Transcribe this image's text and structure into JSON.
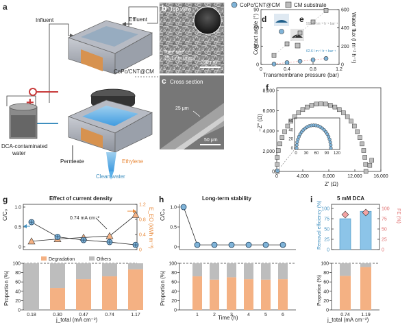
{
  "panels": {
    "a": {
      "label": "a",
      "influent": "Influent",
      "effluent": "Effluent",
      "membrane": "CoPc/CNT@CM",
      "source": "DCA-contaminated water",
      "source_line1": "DCA-contaminated",
      "source_line2": "water",
      "permeate": "Permeate",
      "ethylene": "Ethylene",
      "clean_water": "Clean water",
      "plus": "+",
      "minus": "−"
    },
    "b": {
      "label": "b",
      "title": "Top view",
      "pore_line1": "Pore size",
      "pore_line2": "15.1 nm (avg.)",
      "scale": "200 nm"
    },
    "c": {
      "label": "c",
      "title": "Cross section",
      "thickness": "25 μm",
      "scale": "50 μm"
    },
    "legend": {
      "s1": "CoPc/CNT@CM",
      "s2": "CM substrate"
    },
    "d": {
      "label": "d"
    },
    "e": {
      "label": "e",
      "note1": "592.0 l m⁻² h⁻¹ bar⁻¹",
      "note2": "62.6 l m⁻² h⁻¹ bar⁻¹"
    },
    "f": {
      "label": "f"
    },
    "g": {
      "label": "g",
      "title": "Effect of current density",
      "annotation": "0.74 mA cm⁻²"
    },
    "h": {
      "label": "h",
      "title": "Long-term stability"
    },
    "i": {
      "label": "i",
      "title": "5 mM DCA"
    }
  },
  "colors": {
    "blue": "#7fb3d8",
    "gray": "#bdbdbd",
    "orange": "#f4b183",
    "orange_dark": "#e8893a",
    "pink": "#f4a3a3",
    "dark_blue": "#1f5f8b"
  },
  "chart_data": [
    {
      "id": "d_e",
      "type": "scatter",
      "xlabel": "Transmembrane pressure (bar)",
      "ylabel": "Contact angle (°)",
      "y2label": "Water flux (l m⁻² h⁻¹)",
      "xticks": [
        "0",
        "0.4",
        "0.8",
        "1.2"
      ],
      "xlim": [
        0,
        1.2
      ],
      "yticks": [
        "0",
        "30",
        "60",
        "90"
      ],
      "ylim": [
        0,
        90
      ],
      "y2ticks": [
        "0",
        "200",
        "400",
        "600"
      ],
      "y2lim": [
        0,
        600
      ],
      "series": [
        {
          "name": "CoPc/CNT@CM",
          "x": [
            0.2,
            0.4,
            0.6,
            0.8,
            1.0
          ],
          "y": [
            5,
            20,
            35,
            50,
            65
          ]
        },
        {
          "name": "CM substrate",
          "x": [
            0.2,
            0.4,
            0.6,
            0.8,
            1.0
          ],
          "y": [
            100,
            225,
            345,
            465,
            590
          ]
        }
      ]
    },
    {
      "id": "f",
      "type": "scatter",
      "xlabel": "Z′ (Ω)",
      "ylabel": "−Z″ (Ω)",
      "xticks": [
        "0",
        "4,000",
        "8,000",
        "12,000",
        "16,000"
      ],
      "xlim": [
        0,
        16000
      ],
      "yticks": [
        "0",
        "2,000",
        "4,000",
        "6,000",
        "8,000"
      ],
      "ylim": [
        0,
        8000
      ],
      "inset_xticks": [
        "0",
        "30",
        "60",
        "90",
        "120"
      ],
      "inset_yticks": [
        "0",
        "20",
        "40",
        "60"
      ],
      "series": [
        {
          "name": "CM substrate",
          "center": 6800,
          "radius": 6900
        },
        {
          "name": "CoPc/CNT@CM",
          "center": 52,
          "radius": 50
        }
      ]
    },
    {
      "id": "g",
      "type": "line",
      "categories": [
        "0.18",
        "0.30",
        "0.47",
        "0.74",
        "1.17"
      ],
      "xlabel": "j_total (mA cm⁻²)",
      "ylabel": "C/C₀",
      "y2label": "E_EO (kWh m⁻³)",
      "ylabel_bottom": "Proportion (%)",
      "yticks": [
        "0",
        "0.5",
        "1.0"
      ],
      "y2ticks": [
        "0",
        "0.4",
        "0.8",
        "1.2"
      ],
      "bottom_yticks": [
        "0",
        "20",
        "40",
        "60",
        "80",
        "100"
      ],
      "c_c0": [
        0.62,
        0.25,
        0.17,
        0.12,
        0.05
      ],
      "e_eo": [
        0.22,
        0.28,
        0.32,
        0.36,
        0.92
      ],
      "degradation": [
        0,
        47,
        66,
        72,
        87
      ],
      "others": [
        100,
        53,
        34,
        28,
        13
      ],
      "legend": [
        "Degradation",
        "Others"
      ]
    },
    {
      "id": "h",
      "type": "line",
      "categories": [
        "1",
        "2",
        "3",
        "4",
        "5",
        "6"
      ],
      "xlabel": "Time (h)",
      "ylabel": "C/C₀",
      "ylabel_bottom": "Proportion (%)",
      "yticks": [
        "0",
        "0.5",
        "1.0"
      ],
      "bottom_yticks": [
        "0",
        "20",
        "40",
        "60",
        "80",
        "100"
      ],
      "c_c0": [
        1.0,
        0.05,
        0.05,
        0.05,
        0.05,
        0.05,
        0.05
      ],
      "degradation": [
        72,
        65,
        70,
        66,
        65,
        66
      ],
      "others": [
        28,
        35,
        30,
        34,
        35,
        34
      ]
    },
    {
      "id": "i",
      "type": "bar",
      "categories": [
        "0.74",
        "1.19"
      ],
      "xlabel": "j_total (mA cm⁻²)",
      "ylabel": "Removal efficiency (%)",
      "y2label": "FE (%)",
      "ylabel_bottom": "Proportion (%)",
      "yticks": [
        "0",
        "25",
        "50",
        "75",
        "100"
      ],
      "y2ticks": [
        "0",
        "25",
        "50",
        "75",
        "100"
      ],
      "bottom_yticks": [
        "0",
        "20",
        "40",
        "60",
        "80",
        "100"
      ],
      "removal": [
        75,
        93
      ],
      "fe": [
        85,
        90
      ],
      "degradation": [
        73,
        92
      ],
      "others": [
        27,
        8
      ]
    }
  ]
}
